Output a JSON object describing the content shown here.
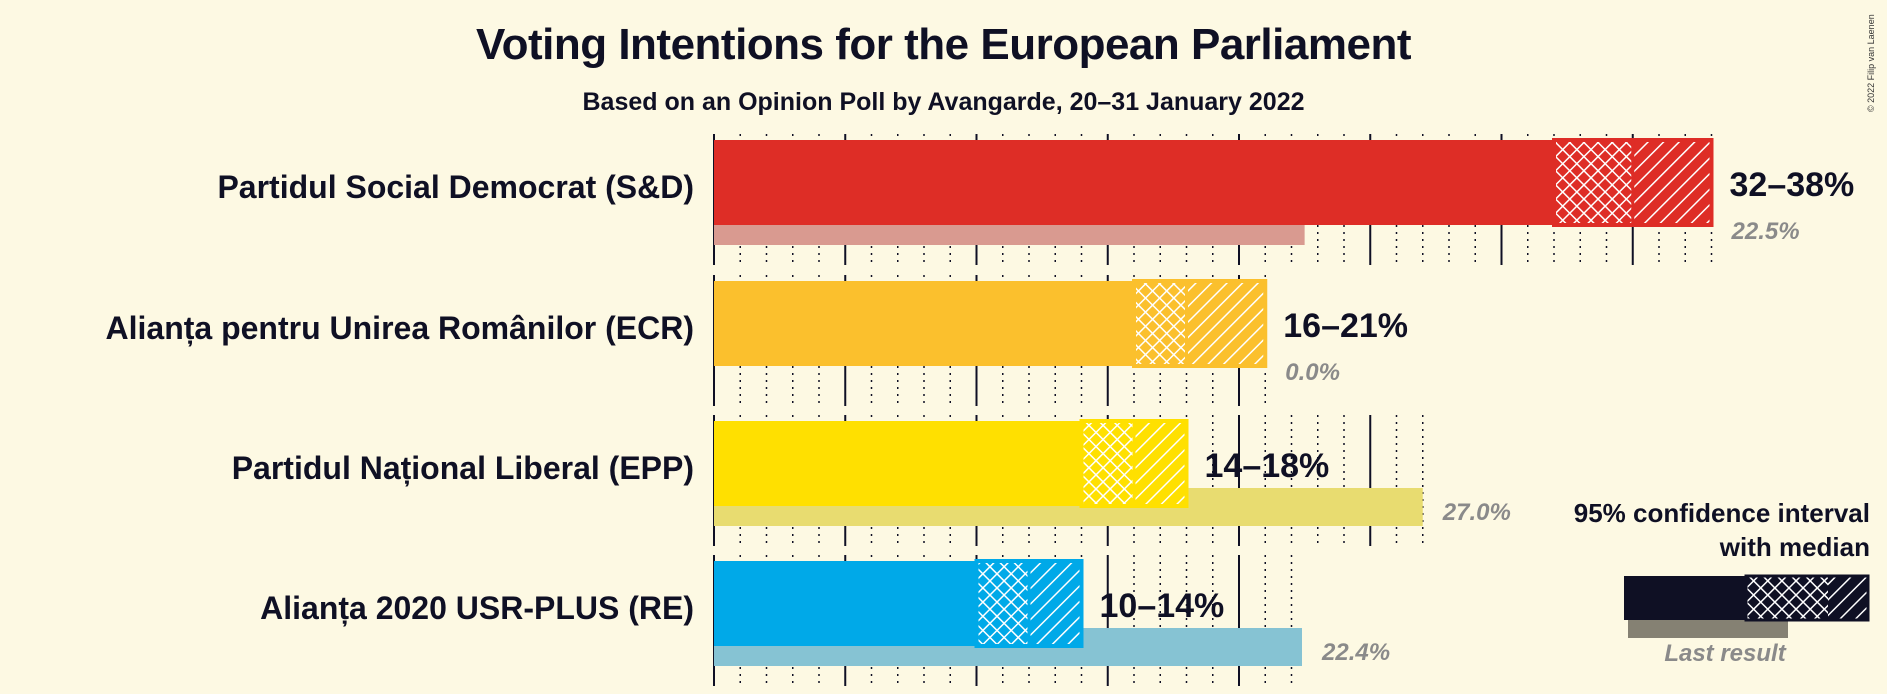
{
  "chart_data": {
    "type": "bar",
    "orientation": "horizontal",
    "title": "Voting Intentions for the European Parliament",
    "subtitle": "Based on an Opinion Poll by Avangarde, 20–31 January 2022",
    "copyright": "© 2022 Filip van Laenen",
    "xlim": [
      0,
      40
    ],
    "grid": true,
    "legend_position": "right",
    "legend": {
      "title_line1": "95% confidence interval",
      "title_line2": "with median",
      "last_result_label": "Last result"
    },
    "parties": [
      {
        "name": "Partidul Social Democrat (S&D)",
        "color": "#DE2D26",
        "ci_low": 32,
        "median": 35,
        "ci_high": 38,
        "range_label": "32–38%",
        "last_result": 22.5,
        "last_result_label": "22.5%",
        "last_color": "#D99A90"
      },
      {
        "name": "Alianța pentru Unirea Românilor (ECR)",
        "color": "#FBC02D",
        "ci_low": 16,
        "median": 18,
        "ci_high": 21,
        "range_label": "16–21%",
        "last_result": 0.0,
        "last_result_label": "0.0%",
        "last_color": "#E5CC7A"
      },
      {
        "name": "Partidul Național Liberal (EPP)",
        "color": "#FFE000",
        "ci_low": 14,
        "median": 16,
        "ci_high": 18,
        "range_label": "14–18%",
        "last_result": 27.0,
        "last_result_label": "27.0%",
        "last_color": "#E8DC70"
      },
      {
        "name": "Alianța 2020 USR-PLUS (RE)",
        "color": "#00A9E8",
        "ci_low": 10,
        "median": 12,
        "ci_high": 14,
        "range_label": "10–14%",
        "last_result": 22.4,
        "last_result_label": "22.4%",
        "last_color": "#86C3D3"
      }
    ]
  }
}
